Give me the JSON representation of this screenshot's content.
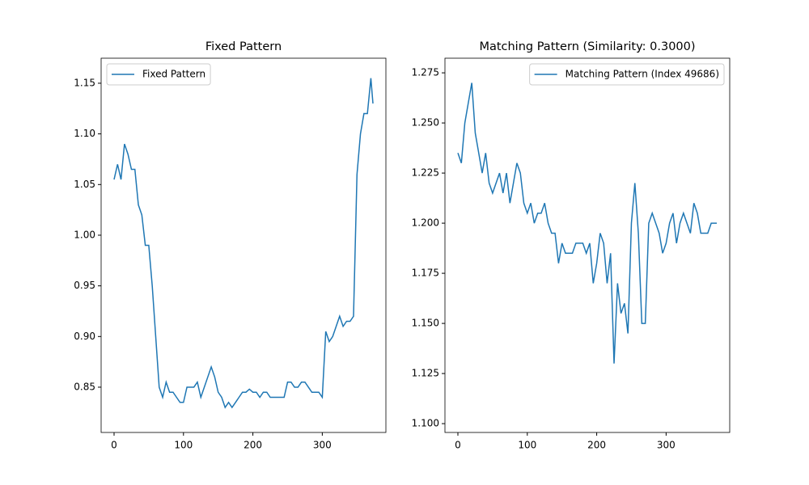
{
  "chart_data": [
    {
      "type": "line",
      "title": "Fixed Pattern",
      "legend": "upper left",
      "x": [
        0,
        5,
        10,
        15,
        20,
        25,
        30,
        35,
        40,
        45,
        50,
        55,
        60,
        65,
        70,
        75,
        80,
        85,
        90,
        95,
        100,
        105,
        110,
        115,
        120,
        125,
        130,
        135,
        140,
        145,
        150,
        155,
        160,
        165,
        170,
        175,
        180,
        185,
        190,
        195,
        200,
        205,
        210,
        215,
        220,
        225,
        230,
        235,
        240,
        245,
        250,
        255,
        260,
        265,
        270,
        275,
        280,
        285,
        290,
        295,
        300,
        305,
        310,
        315,
        320,
        325,
        330,
        335,
        340,
        345,
        350,
        355,
        360,
        365,
        370,
        373
      ],
      "series": [
        {
          "name": "Fixed Pattern",
          "color": "#1f77b4",
          "values": [
            1.055,
            1.07,
            1.055,
            1.09,
            1.08,
            1.065,
            1.065,
            1.03,
            1.02,
            0.99,
            0.99,
            0.95,
            0.9,
            0.85,
            0.84,
            0.855,
            0.845,
            0.845,
            0.84,
            0.835,
            0.835,
            0.85,
            0.85,
            0.85,
            0.855,
            0.84,
            0.85,
            0.86,
            0.87,
            0.86,
            0.845,
            0.84,
            0.83,
            0.835,
            0.83,
            0.835,
            0.84,
            0.845,
            0.845,
            0.848,
            0.845,
            0.845,
            0.84,
            0.845,
            0.845,
            0.84,
            0.84,
            0.84,
            0.84,
            0.84,
            0.855,
            0.855,
            0.85,
            0.85,
            0.855,
            0.855,
            0.85,
            0.845,
            0.845,
            0.845,
            0.84,
            0.905,
            0.895,
            0.9,
            0.91,
            0.92,
            0.91,
            0.915,
            0.915,
            0.92,
            1.06,
            1.1,
            1.12,
            1.12,
            1.155,
            1.13
          ]
        }
      ],
      "xlim": [
        -18.65,
        391.65
      ],
      "xticks": [
        0,
        100,
        200,
        300
      ],
      "ylim": [
        0.8053,
        1.1747
      ],
      "yticks": [
        0.85,
        {
          "value": 0.9,
          "label": "0.90"
        },
        0.95,
        {
          "value": 1.0,
          "label": "1.00"
        },
        1.05,
        {
          "value": 1.1,
          "label": "1.10"
        },
        1.15
      ]
    },
    {
      "type": "line",
      "title": "Matching Pattern (Similarity: 0.3000)",
      "legend": "upper right",
      "x": [
        0,
        5,
        10,
        15,
        20,
        25,
        30,
        35,
        40,
        45,
        50,
        55,
        60,
        65,
        70,
        75,
        80,
        85,
        90,
        95,
        100,
        105,
        110,
        115,
        120,
        125,
        130,
        135,
        140,
        145,
        150,
        155,
        160,
        165,
        170,
        175,
        180,
        185,
        190,
        195,
        200,
        205,
        210,
        215,
        220,
        225,
        230,
        235,
        240,
        245,
        250,
        255,
        260,
        265,
        270,
        275,
        280,
        285,
        290,
        295,
        300,
        305,
        310,
        315,
        320,
        325,
        330,
        335,
        340,
        345,
        350,
        355,
        360,
        365,
        370,
        373
      ],
      "series": [
        {
          "name": "Matching Pattern (Index 49686)",
          "color": "#1f77b4",
          "values": [
            1.235,
            1.23,
            1.25,
            1.26,
            1.27,
            1.245,
            1.235,
            1.225,
            1.235,
            1.22,
            1.215,
            1.22,
            1.225,
            1.215,
            1.225,
            1.21,
            1.22,
            1.23,
            1.225,
            1.21,
            1.205,
            1.21,
            1.2,
            1.205,
            1.205,
            1.21,
            1.2,
            1.195,
            1.195,
            1.18,
            1.19,
            1.185,
            1.185,
            1.185,
            1.19,
            1.19,
            1.19,
            1.185,
            1.19,
            1.17,
            1.18,
            1.195,
            1.19,
            1.17,
            1.185,
            1.13,
            1.17,
            1.155,
            1.16,
            1.145,
            1.2,
            1.22,
            1.195,
            1.15,
            1.15,
            1.2,
            1.205,
            1.2,
            1.195,
            1.185,
            1.19,
            1.2,
            1.205,
            1.19,
            1.2,
            1.205,
            1.2,
            1.195,
            1.21,
            1.205,
            1.195,
            1.195,
            1.195,
            1.2,
            1.2,
            1.2
          ]
        }
      ],
      "xlim": [
        -18.65,
        391.65
      ],
      "xticks": [
        0,
        100,
        200,
        300
      ],
      "ylim": [
        1.0956,
        1.2823
      ],
      "yticks": [
        {
          "value": 1.1,
          "label": "1.100"
        },
        1.125,
        {
          "value": 1.15,
          "label": "1.150"
        },
        1.175,
        {
          "value": 1.2,
          "label": "1.200"
        },
        1.225,
        {
          "value": 1.25,
          "label": "1.250"
        },
        1.275
      ]
    }
  ]
}
